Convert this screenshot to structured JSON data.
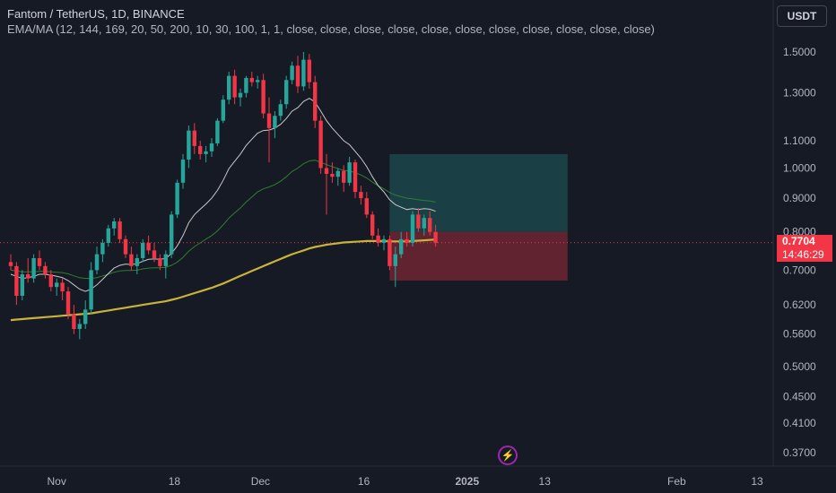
{
  "legend": {
    "title": "Fantom / TetherUS, 1D, BINANCE",
    "indicator": "EMA/MA (12, 144, 169, 20, 50, 200, 10, 30, 100, 1, 1, close, close, close, close, close, close, close, close, close, close, close)"
  },
  "currency": "USDT",
  "last_price": "0.7704",
  "countdown": "14:46:29",
  "colors": {
    "background": "#161a25",
    "up": "#26a69a",
    "down": "#f23645",
    "ema_white": "#c8c8c8",
    "ema_green": "#2e7d32",
    "ma_yellow": "#c9b33a",
    "profit_zone": "#26a69a",
    "loss_zone": "#f23645"
  },
  "chart_data": {
    "type": "candlestick",
    "y_scale": "log",
    "y_ticks": [
      "1.5000",
      "1.3000",
      "1.1000",
      "1.0000",
      "0.9000",
      "0.8000",
      "0.7000",
      "0.6200",
      "0.5600",
      "0.5000",
      "0.4500",
      "0.4100",
      "0.3700"
    ],
    "x_ticks": [
      "Nov",
      "18",
      "Dec",
      "16",
      "2025",
      "13",
      "Feb",
      "13"
    ],
    "candles": [
      {
        "o": 0.72,
        "h": 0.74,
        "l": 0.7,
        "c": 0.71
      },
      {
        "o": 0.71,
        "h": 0.72,
        "l": 0.62,
        "c": 0.64
      },
      {
        "o": 0.64,
        "h": 0.7,
        "l": 0.63,
        "c": 0.69
      },
      {
        "o": 0.69,
        "h": 0.73,
        "l": 0.67,
        "c": 0.68
      },
      {
        "o": 0.68,
        "h": 0.74,
        "l": 0.67,
        "c": 0.73
      },
      {
        "o": 0.73,
        "h": 0.75,
        "l": 0.7,
        "c": 0.71
      },
      {
        "o": 0.71,
        "h": 0.72,
        "l": 0.68,
        "c": 0.69
      },
      {
        "o": 0.69,
        "h": 0.7,
        "l": 0.65,
        "c": 0.66
      },
      {
        "o": 0.66,
        "h": 0.68,
        "l": 0.64,
        "c": 0.67
      },
      {
        "o": 0.67,
        "h": 0.68,
        "l": 0.63,
        "c": 0.65
      },
      {
        "o": 0.65,
        "h": 0.66,
        "l": 0.59,
        "c": 0.6
      },
      {
        "o": 0.6,
        "h": 0.62,
        "l": 0.56,
        "c": 0.57
      },
      {
        "o": 0.57,
        "h": 0.59,
        "l": 0.55,
        "c": 0.58
      },
      {
        "o": 0.58,
        "h": 0.63,
        "l": 0.57,
        "c": 0.61
      },
      {
        "o": 0.61,
        "h": 0.72,
        "l": 0.6,
        "c": 0.7
      },
      {
        "o": 0.7,
        "h": 0.76,
        "l": 0.69,
        "c": 0.74
      },
      {
        "o": 0.74,
        "h": 0.78,
        "l": 0.72,
        "c": 0.77
      },
      {
        "o": 0.77,
        "h": 0.82,
        "l": 0.76,
        "c": 0.81
      },
      {
        "o": 0.81,
        "h": 0.84,
        "l": 0.79,
        "c": 0.83
      },
      {
        "o": 0.83,
        "h": 0.84,
        "l": 0.77,
        "c": 0.78
      },
      {
        "o": 0.78,
        "h": 0.79,
        "l": 0.73,
        "c": 0.74
      },
      {
        "o": 0.74,
        "h": 0.76,
        "l": 0.7,
        "c": 0.71
      },
      {
        "o": 0.71,
        "h": 0.74,
        "l": 0.69,
        "c": 0.73
      },
      {
        "o": 0.73,
        "h": 0.78,
        "l": 0.72,
        "c": 0.77
      },
      {
        "o": 0.77,
        "h": 0.79,
        "l": 0.74,
        "c": 0.75
      },
      {
        "o": 0.75,
        "h": 0.77,
        "l": 0.72,
        "c": 0.73
      },
      {
        "o": 0.73,
        "h": 0.74,
        "l": 0.7,
        "c": 0.71
      },
      {
        "o": 0.71,
        "h": 0.75,
        "l": 0.68,
        "c": 0.74
      },
      {
        "o": 0.74,
        "h": 0.86,
        "l": 0.73,
        "c": 0.85
      },
      {
        "o": 0.85,
        "h": 0.96,
        "l": 0.84,
        "c": 0.95
      },
      {
        "o": 0.95,
        "h": 1.05,
        "l": 0.93,
        "c": 1.03
      },
      {
        "o": 1.03,
        "h": 1.16,
        "l": 1.0,
        "c": 1.14
      },
      {
        "o": 1.14,
        "h": 1.17,
        "l": 1.05,
        "c": 1.08
      },
      {
        "o": 1.08,
        "h": 1.1,
        "l": 1.03,
        "c": 1.05
      },
      {
        "o": 1.05,
        "h": 1.08,
        "l": 1.02,
        "c": 1.06
      },
      {
        "o": 1.06,
        "h": 1.11,
        "l": 1.04,
        "c": 1.09
      },
      {
        "o": 1.09,
        "h": 1.19,
        "l": 1.08,
        "c": 1.18
      },
      {
        "o": 1.18,
        "h": 1.29,
        "l": 1.17,
        "c": 1.27
      },
      {
        "o": 1.27,
        "h": 1.4,
        "l": 1.25,
        "c": 1.38
      },
      {
        "o": 1.38,
        "h": 1.41,
        "l": 1.25,
        "c": 1.28
      },
      {
        "o": 1.28,
        "h": 1.32,
        "l": 1.24,
        "c": 1.3
      },
      {
        "o": 1.3,
        "h": 1.38,
        "l": 1.28,
        "c": 1.37
      },
      {
        "o": 1.37,
        "h": 1.4,
        "l": 1.33,
        "c": 1.35
      },
      {
        "o": 1.35,
        "h": 1.38,
        "l": 1.32,
        "c": 1.36
      },
      {
        "o": 1.36,
        "h": 1.39,
        "l": 1.19,
        "c": 1.21
      },
      {
        "o": 1.21,
        "h": 1.28,
        "l": 1.02,
        "c": 1.15
      },
      {
        "o": 1.15,
        "h": 1.22,
        "l": 1.11,
        "c": 1.2
      },
      {
        "o": 1.2,
        "h": 1.27,
        "l": 1.18,
        "c": 1.25
      },
      {
        "o": 1.25,
        "h": 1.38,
        "l": 1.23,
        "c": 1.36
      },
      {
        "o": 1.36,
        "h": 1.45,
        "l": 1.34,
        "c": 1.43
      },
      {
        "o": 1.43,
        "h": 1.48,
        "l": 1.3,
        "c": 1.33
      },
      {
        "o": 1.33,
        "h": 1.5,
        "l": 1.31,
        "c": 1.46
      },
      {
        "o": 1.46,
        "h": 1.49,
        "l": 1.32,
        "c": 1.35
      },
      {
        "o": 1.35,
        "h": 1.38,
        "l": 1.15,
        "c": 1.18
      },
      {
        "o": 1.18,
        "h": 1.2,
        "l": 0.98,
        "c": 1.0
      },
      {
        "o": 1.0,
        "h": 1.05,
        "l": 0.85,
        "c": 0.98
      },
      {
        "o": 0.98,
        "h": 1.02,
        "l": 0.95,
        "c": 0.97
      },
      {
        "o": 0.97,
        "h": 1.0,
        "l": 0.94,
        "c": 0.99
      },
      {
        "o": 0.99,
        "h": 1.01,
        "l": 0.92,
        "c": 0.95
      },
      {
        "o": 0.95,
        "h": 1.04,
        "l": 0.94,
        "c": 1.02
      },
      {
        "o": 1.02,
        "h": 1.03,
        "l": 0.9,
        "c": 0.92
      },
      {
        "o": 0.92,
        "h": 0.94,
        "l": 0.88,
        "c": 0.9
      },
      {
        "o": 0.9,
        "h": 0.92,
        "l": 0.84,
        "c": 0.85
      },
      {
        "o": 0.85,
        "h": 0.86,
        "l": 0.78,
        "c": 0.79
      },
      {
        "o": 0.79,
        "h": 0.81,
        "l": 0.76,
        "c": 0.77
      },
      {
        "o": 0.77,
        "h": 0.79,
        "l": 0.75,
        "c": 0.78
      },
      {
        "o": 0.78,
        "h": 0.79,
        "l": 0.7,
        "c": 0.71
      },
      {
        "o": 0.71,
        "h": 0.76,
        "l": 0.66,
        "c": 0.74
      },
      {
        "o": 0.74,
        "h": 0.8,
        "l": 0.73,
        "c": 0.78
      },
      {
        "o": 0.78,
        "h": 0.8,
        "l": 0.76,
        "c": 0.77
      },
      {
        "o": 0.77,
        "h": 0.86,
        "l": 0.76,
        "c": 0.85
      },
      {
        "o": 0.85,
        "h": 0.87,
        "l": 0.8,
        "c": 0.81
      },
      {
        "o": 0.81,
        "h": 0.85,
        "l": 0.79,
        "c": 0.84
      },
      {
        "o": 0.84,
        "h": 0.86,
        "l": 0.79,
        "c": 0.8
      },
      {
        "o": 0.8,
        "h": 0.82,
        "l": 0.76,
        "c": 0.77
      }
    ],
    "ema_white": [
      0.69,
      0.685,
      0.68,
      0.682,
      0.685,
      0.69,
      0.69,
      0.688,
      0.685,
      0.682,
      0.675,
      0.665,
      0.655,
      0.65,
      0.655,
      0.665,
      0.678,
      0.692,
      0.705,
      0.712,
      0.715,
      0.714,
      0.716,
      0.722,
      0.727,
      0.728,
      0.727,
      0.729,
      0.742,
      0.762,
      0.79,
      0.826,
      0.85,
      0.866,
      0.882,
      0.9,
      0.925,
      0.958,
      0.998,
      1.024,
      1.05,
      1.082,
      1.106,
      1.13,
      1.14,
      1.142,
      1.15,
      1.165,
      1.189,
      1.22,
      1.235,
      1.262,
      1.276,
      1.26,
      1.22,
      1.18,
      1.15,
      1.125,
      1.1,
      1.085,
      1.06,
      1.035,
      1.005,
      0.97,
      0.94,
      0.92,
      0.895,
      0.88,
      0.872,
      0.865,
      0.868,
      0.865,
      0.868,
      0.866,
      0.86
    ],
    "ema_green": [
      0.7,
      0.698,
      0.696,
      0.696,
      0.696,
      0.697,
      0.697,
      0.696,
      0.695,
      0.694,
      0.691,
      0.686,
      0.682,
      0.68,
      0.68,
      0.682,
      0.686,
      0.69,
      0.695,
      0.698,
      0.699,
      0.699,
      0.7,
      0.703,
      0.705,
      0.706,
      0.706,
      0.707,
      0.712,
      0.72,
      0.732,
      0.748,
      0.76,
      0.77,
      0.78,
      0.79,
      0.803,
      0.82,
      0.84,
      0.855,
      0.87,
      0.888,
      0.904,
      0.92,
      0.93,
      0.936,
      0.944,
      0.955,
      0.97,
      0.988,
      1.0,
      1.015,
      1.025,
      1.028,
      1.02,
      1.012,
      1.005,
      0.998,
      0.992,
      0.99,
      0.984,
      0.976,
      0.966,
      0.952,
      0.94,
      0.93,
      0.918,
      0.91,
      0.905,
      0.9,
      0.898,
      0.895,
      0.893,
      0.891,
      0.888
    ],
    "ma_yellow": [
      0.588,
      0.589,
      0.59,
      0.591,
      0.592,
      0.593,
      0.594,
      0.595,
      0.596,
      0.597,
      0.598,
      0.599,
      0.6,
      0.601,
      0.602,
      0.604,
      0.606,
      0.608,
      0.61,
      0.612,
      0.614,
      0.616,
      0.618,
      0.62,
      0.622,
      0.624,
      0.626,
      0.628,
      0.631,
      0.634,
      0.638,
      0.642,
      0.646,
      0.65,
      0.654,
      0.658,
      0.663,
      0.668,
      0.674,
      0.68,
      0.686,
      0.692,
      0.698,
      0.704,
      0.71,
      0.716,
      0.722,
      0.728,
      0.734,
      0.74,
      0.745,
      0.75,
      0.755,
      0.759,
      0.762,
      0.765,
      0.767,
      0.769,
      0.771,
      0.772,
      0.773,
      0.774,
      0.775,
      0.775,
      0.775,
      0.775,
      0.774,
      0.774,
      0.774,
      0.774,
      0.775,
      0.776,
      0.777,
      0.778,
      0.779
    ],
    "position": {
      "type": "long",
      "entry": 0.8,
      "target": 1.05,
      "stop": 0.675,
      "first_bar": 66,
      "last_bar": 97
    },
    "price_line": 0.7704
  }
}
